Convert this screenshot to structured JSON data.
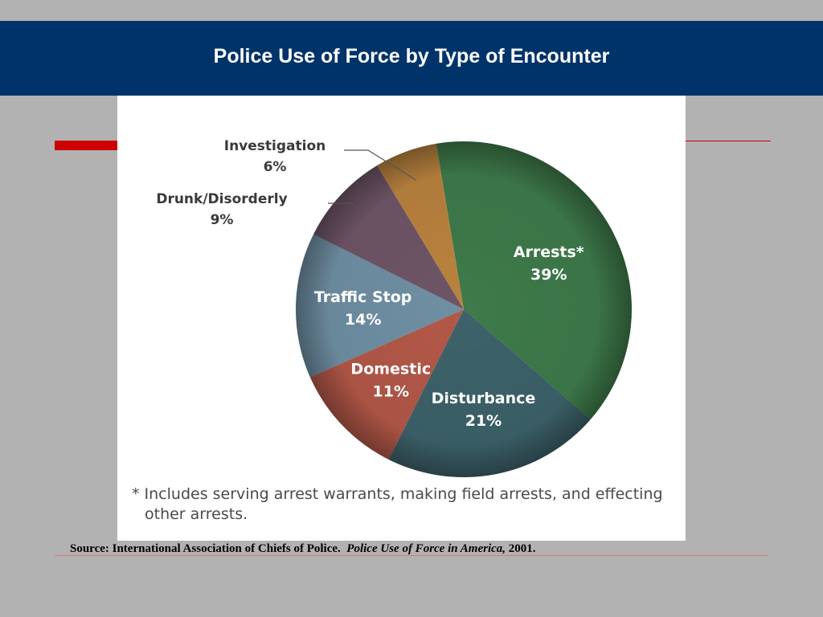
{
  "header": {
    "title": "Police Use of Force by Type of Encounter"
  },
  "chart_data": {
    "type": "pie",
    "slices": [
      {
        "label": "Arrests*",
        "value": 39,
        "value_label": "39%",
        "color": "#3e7a4a",
        "label_position": "inside"
      },
      {
        "label": "Disturbance",
        "value": 21,
        "value_label": "21%",
        "color": "#3d626a",
        "label_position": "inside"
      },
      {
        "label": "Domestic",
        "value": 11,
        "value_label": "11%",
        "color": "#b35848",
        "label_position": "inside"
      },
      {
        "label": "Traffic Stop",
        "value": 14,
        "value_label": "14%",
        "color": "#6f8fa3",
        "label_position": "inside"
      },
      {
        "label": "Drunk/Disorderly",
        "value": 9,
        "value_label": "9%",
        "color": "#6e5566",
        "label_position": "outside"
      },
      {
        "label": "Investigation",
        "value": 6,
        "value_label": "6%",
        "color": "#b9823e",
        "label_position": "outside"
      }
    ],
    "footnote": "* Includes serving arrest warrants, making field arrests, and effecting other arrests."
  },
  "source": {
    "prefix": "Source: International Association of Chiefs of Police.",
    "title": "Police Use of Force in America,",
    "year": "2001."
  },
  "colors": {
    "title_bar": "#00336a",
    "accent_red": "#cc0000",
    "background": "#b2b2b2"
  }
}
